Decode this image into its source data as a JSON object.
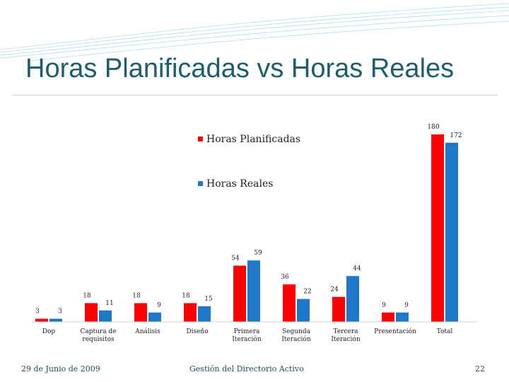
{
  "slide": {
    "title": "Horas Planificadas vs Horas Reales",
    "footer_left": "29 de Junio de 2009",
    "footer_center": "Gestión del Directorio Activo",
    "footer_right": "22"
  },
  "colors": {
    "title": "#1c5e6e",
    "planned": "#ff0000",
    "actual": "#1f77c8",
    "decoration": "#9fd3e6"
  },
  "chart_data": {
    "type": "bar",
    "categories": [
      [
        "Dop"
      ],
      [
        "Captura de",
        "requisitos"
      ],
      [
        "Análisis"
      ],
      [
        "Diseño"
      ],
      [
        "Primera",
        "Iteración"
      ],
      [
        "Segunda",
        "Iteración"
      ],
      [
        "Tercera",
        "Iteración"
      ],
      [
        "Presentación"
      ],
      [
        "Total"
      ]
    ],
    "series": [
      {
        "name": "Horas Planificadas",
        "values": [
          3,
          18,
          18,
          18,
          54,
          36,
          24,
          9,
          180
        ]
      },
      {
        "name": "Horas Reales",
        "values": [
          3,
          11,
          9,
          15,
          59,
          22,
          44,
          9,
          172
        ]
      }
    ],
    "ylim": [
      0,
      180
    ],
    "grid": false,
    "legend": "top-center"
  }
}
